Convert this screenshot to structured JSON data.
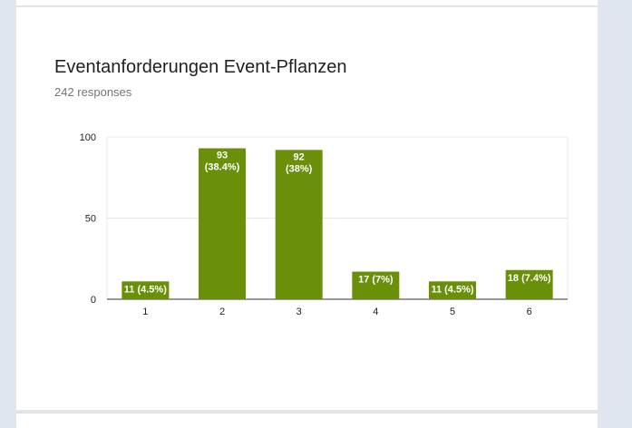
{
  "form": {
    "question_title": "Eventanforderungen Event-Pflanzen",
    "response_count": "242 responses"
  },
  "colors": {
    "bar": "#6a9009",
    "background": "#dfe6ee",
    "card": "#ffffff"
  },
  "chart_data": {
    "type": "bar",
    "title": "Eventanforderungen Event-Pflanzen",
    "subtitle": "242 responses",
    "categories": [
      "1",
      "2",
      "3",
      "4",
      "5",
      "6"
    ],
    "values": [
      11,
      93,
      92,
      17,
      11,
      18
    ],
    "data_labels": [
      "11 (4.5%)",
      "93\n(38.4%)",
      "92\n(38%)",
      "17 (7%)",
      "11 (4.5%)",
      "18 (7.4%)"
    ],
    "y_ticks": [
      "0",
      "50",
      "100"
    ],
    "ylim": [
      0,
      100
    ],
    "xlabel": "",
    "ylabel": "",
    "grid": true
  }
}
